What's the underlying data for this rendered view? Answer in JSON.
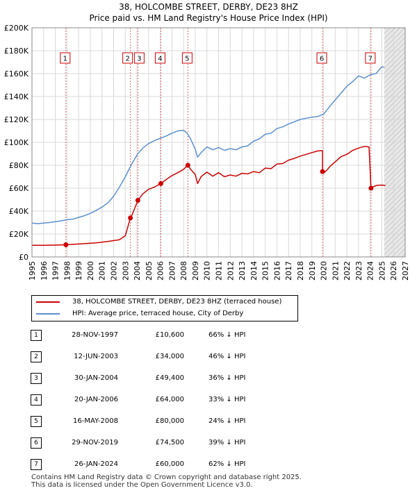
{
  "header": {
    "title_line1": "38, HOLCOMBE STREET, DERBY, DE23 8HZ",
    "title_line2": "Price paid vs. HM Land Registry's House Price Index (HPI)"
  },
  "colors": {
    "property": "#cc0000",
    "hpi": "#5b8fd0",
    "grid": "#d8d8d8",
    "shade": "#dde6f3",
    "vline": "#e06666"
  },
  "chart_data": {
    "type": "line",
    "title": "Price paid vs. HM Land Registry's House Price Index (HPI)",
    "xlabel": "",
    "ylabel": "",
    "xlim": [
      1995,
      2027
    ],
    "ylim": [
      0,
      200000
    ],
    "x_ticks": [
      "1995",
      "1996",
      "1997",
      "1998",
      "1999",
      "2000",
      "2001",
      "2002",
      "2003",
      "2004",
      "2005",
      "2006",
      "2007",
      "2008",
      "2009",
      "2010",
      "2011",
      "2012",
      "2013",
      "2014",
      "2015",
      "2016",
      "2017",
      "2018",
      "2019",
      "2020",
      "2021",
      "2022",
      "2023",
      "2024",
      "2025",
      "2026",
      "2027"
    ],
    "y_ticks": [
      {
        "value": 0,
        "label": "£0"
      },
      {
        "value": 20000,
        "label": "£20K"
      },
      {
        "value": 40000,
        "label": "£40K"
      },
      {
        "value": 60000,
        "label": "£60K"
      },
      {
        "value": 80000,
        "label": "£80K"
      },
      {
        "value": 100000,
        "label": "£100K"
      },
      {
        "value": 120000,
        "label": "£120K"
      },
      {
        "value": 140000,
        "label": "£140K"
      },
      {
        "value": 160000,
        "label": "£160K"
      },
      {
        "value": 180000,
        "label": "£180K"
      },
      {
        "value": 200000,
        "label": "£200K"
      }
    ],
    "forecast_start": 2025.2,
    "series": [
      {
        "name": "38, HOLCOMBE STREET, DERBY, DE23 8HZ (terraced house)",
        "x": [
          1995.0,
          1996.0,
          1997.0,
          1997.91,
          1998.5,
          1999.5,
          2000.5,
          2001.5,
          2002.5,
          2003.0,
          2003.44,
          2003.6,
          2004.08,
          2004.5,
          2005.0,
          2005.5,
          2006.05,
          2006.5,
          2007.0,
          2007.5,
          2008.0,
          2008.37,
          2008.6,
          2009.0,
          2009.2,
          2009.5,
          2010.0,
          2010.5,
          2011.0,
          2011.5,
          2012.0,
          2012.5,
          2013.0,
          2013.5,
          2014.0,
          2014.5,
          2015.0,
          2015.5,
          2016.0,
          2016.5,
          2017.0,
          2017.5,
          2018.0,
          2018.5,
          2019.0,
          2019.5,
          2019.9,
          2019.91,
          2020.0,
          2020.3,
          2020.6,
          2021.0,
          2021.5,
          2022.0,
          2022.5,
          2023.0,
          2023.5,
          2023.9,
          2024.07,
          2024.3,
          2024.6,
          2025.0,
          2025.3
        ],
        "y": [
          10200,
          10100,
          10300,
          10600,
          11000,
          11600,
          12300,
          13500,
          15000,
          18500,
          34000,
          37000,
          49400,
          55000,
          59000,
          61000,
          64000,
          67500,
          71000,
          73500,
          76500,
          80000,
          76500,
          72000,
          64000,
          70000,
          74000,
          70500,
          73500,
          70000,
          71500,
          70500,
          73000,
          72500,
          74500,
          73500,
          77500,
          77000,
          81000,
          81500,
          84500,
          86000,
          88000,
          89500,
          91000,
          92500,
          92800,
          74500,
          73000,
          76000,
          79500,
          83000,
          87500,
          89500,
          93000,
          95000,
          96500,
          96000,
          60000,
          61500,
          62500,
          62700,
          62300
        ]
      },
      {
        "name": "HPI: Average price, terraced house, City of Derby",
        "x": [
          1995.0,
          1995.5,
          1996.0,
          1996.5,
          1997.0,
          1997.5,
          1998.0,
          1998.5,
          1999.0,
          1999.5,
          2000.0,
          2000.5,
          2001.0,
          2001.5,
          2002.0,
          2002.5,
          2003.0,
          2003.5,
          2004.0,
          2004.5,
          2005.0,
          2005.5,
          2006.0,
          2006.5,
          2007.0,
          2007.5,
          2008.0,
          2008.3,
          2008.6,
          2009.0,
          2009.2,
          2009.5,
          2010.0,
          2010.5,
          2011.0,
          2011.5,
          2012.0,
          2012.5,
          2013.0,
          2013.5,
          2014.0,
          2014.5,
          2015.0,
          2015.5,
          2016.0,
          2016.5,
          2017.0,
          2017.5,
          2018.0,
          2018.5,
          2019.0,
          2019.5,
          2020.0,
          2020.5,
          2021.0,
          2021.5,
          2022.0,
          2022.5,
          2023.0,
          2023.5,
          2024.0,
          2024.5,
          2025.0,
          2025.2
        ],
        "y": [
          29500,
          29000,
          29500,
          30000,
          30800,
          31500,
          32500,
          33000,
          34500,
          36000,
          38000,
          40500,
          43500,
          47000,
          53000,
          61000,
          70000,
          80000,
          89000,
          95000,
          99000,
          101500,
          103500,
          105500,
          108000,
          110000,
          110500,
          108000,
          103000,
          94000,
          87000,
          91000,
          96000,
          93500,
          95500,
          93000,
          94500,
          93500,
          96000,
          97000,
          101000,
          103000,
          107000,
          108000,
          112000,
          113500,
          116000,
          118000,
          120000,
          121000,
          122000,
          122500,
          124500,
          131000,
          137000,
          143000,
          149000,
          153000,
          158000,
          156000,
          159000,
          160000,
          166000,
          165500
        ]
      }
    ],
    "sales": [
      {
        "num": "1",
        "x": 1997.91,
        "price": 10600
      },
      {
        "num": "2",
        "x": 2003.44,
        "price": 34000
      },
      {
        "num": "3",
        "x": 2004.08,
        "price": 49400
      },
      {
        "num": "4",
        "x": 2006.05,
        "price": 64000
      },
      {
        "num": "5",
        "x": 2008.37,
        "price": 80000
      },
      {
        "num": "6",
        "x": 2019.91,
        "price": 74500
      },
      {
        "num": "7",
        "x": 2024.07,
        "price": 60000
      }
    ]
  },
  "legend": {
    "property_label": "38, HOLCOMBE STREET, DERBY, DE23 8HZ (terraced house)",
    "hpi_label": "HPI: Average price, terraced house, City of Derby"
  },
  "sales_table": [
    {
      "num": "1",
      "date": "28-NOV-1997",
      "price": "£10,600",
      "hpi": "66% ↓ HPI"
    },
    {
      "num": "2",
      "date": "12-JUN-2003",
      "price": "£34,000",
      "hpi": "46% ↓ HPI"
    },
    {
      "num": "3",
      "date": "30-JAN-2004",
      "price": "£49,400",
      "hpi": "36% ↓ HPI"
    },
    {
      "num": "4",
      "date": "20-JAN-2006",
      "price": "£64,000",
      "hpi": "33% ↓ HPI"
    },
    {
      "num": "5",
      "date": "16-MAY-2008",
      "price": "£80,000",
      "hpi": "24% ↓ HPI"
    },
    {
      "num": "6",
      "date": "29-NOV-2019",
      "price": "£74,500",
      "hpi": "39% ↓ HPI"
    },
    {
      "num": "7",
      "date": "26-JAN-2024",
      "price": "£60,000",
      "hpi": "62% ↓ HPI"
    }
  ],
  "footer": {
    "line1": "Contains HM Land Registry data © Crown copyright and database right 2025.",
    "line2": "This data is licensed under the Open Government Licence v3.0."
  }
}
